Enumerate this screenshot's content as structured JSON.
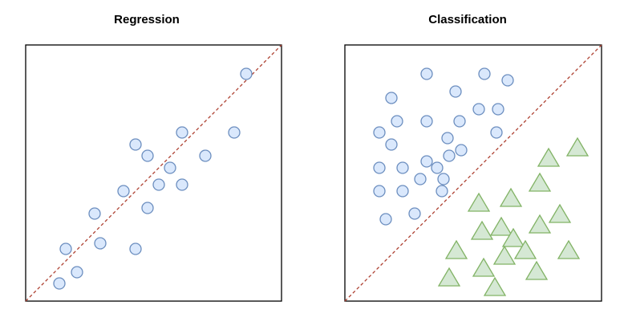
{
  "panels": {
    "regression": {
      "title": "Regression"
    },
    "classification": {
      "title": "Classification"
    }
  },
  "colors": {
    "circle_fill": "#dae8fc",
    "circle_stroke": "#6c8ebf",
    "triangle_fill": "#d5e8d4",
    "triangle_stroke": "#82b366",
    "dashed_line": "#ae4132",
    "frame": "#000000"
  }
}
